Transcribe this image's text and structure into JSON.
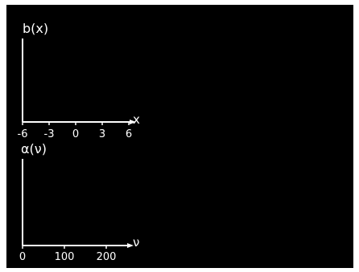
{
  "chart_data": [
    {
      "type": "line",
      "ylabel": "b(x)",
      "xlabel": "x",
      "xlim": [
        -6,
        6
      ],
      "x_ticks": [
        -6,
        -3,
        0,
        3,
        6
      ],
      "series": [],
      "grid": false
    },
    {
      "type": "line",
      "ylabel": "α(ν)",
      "xlabel": "ν",
      "xlim": [
        0,
        250
      ],
      "x_ticks": [
        0,
        100,
        200
      ],
      "series": [],
      "grid": false
    }
  ],
  "colors": {
    "background": "#000000",
    "axes": "#ffffff",
    "border": "#ffffff"
  }
}
